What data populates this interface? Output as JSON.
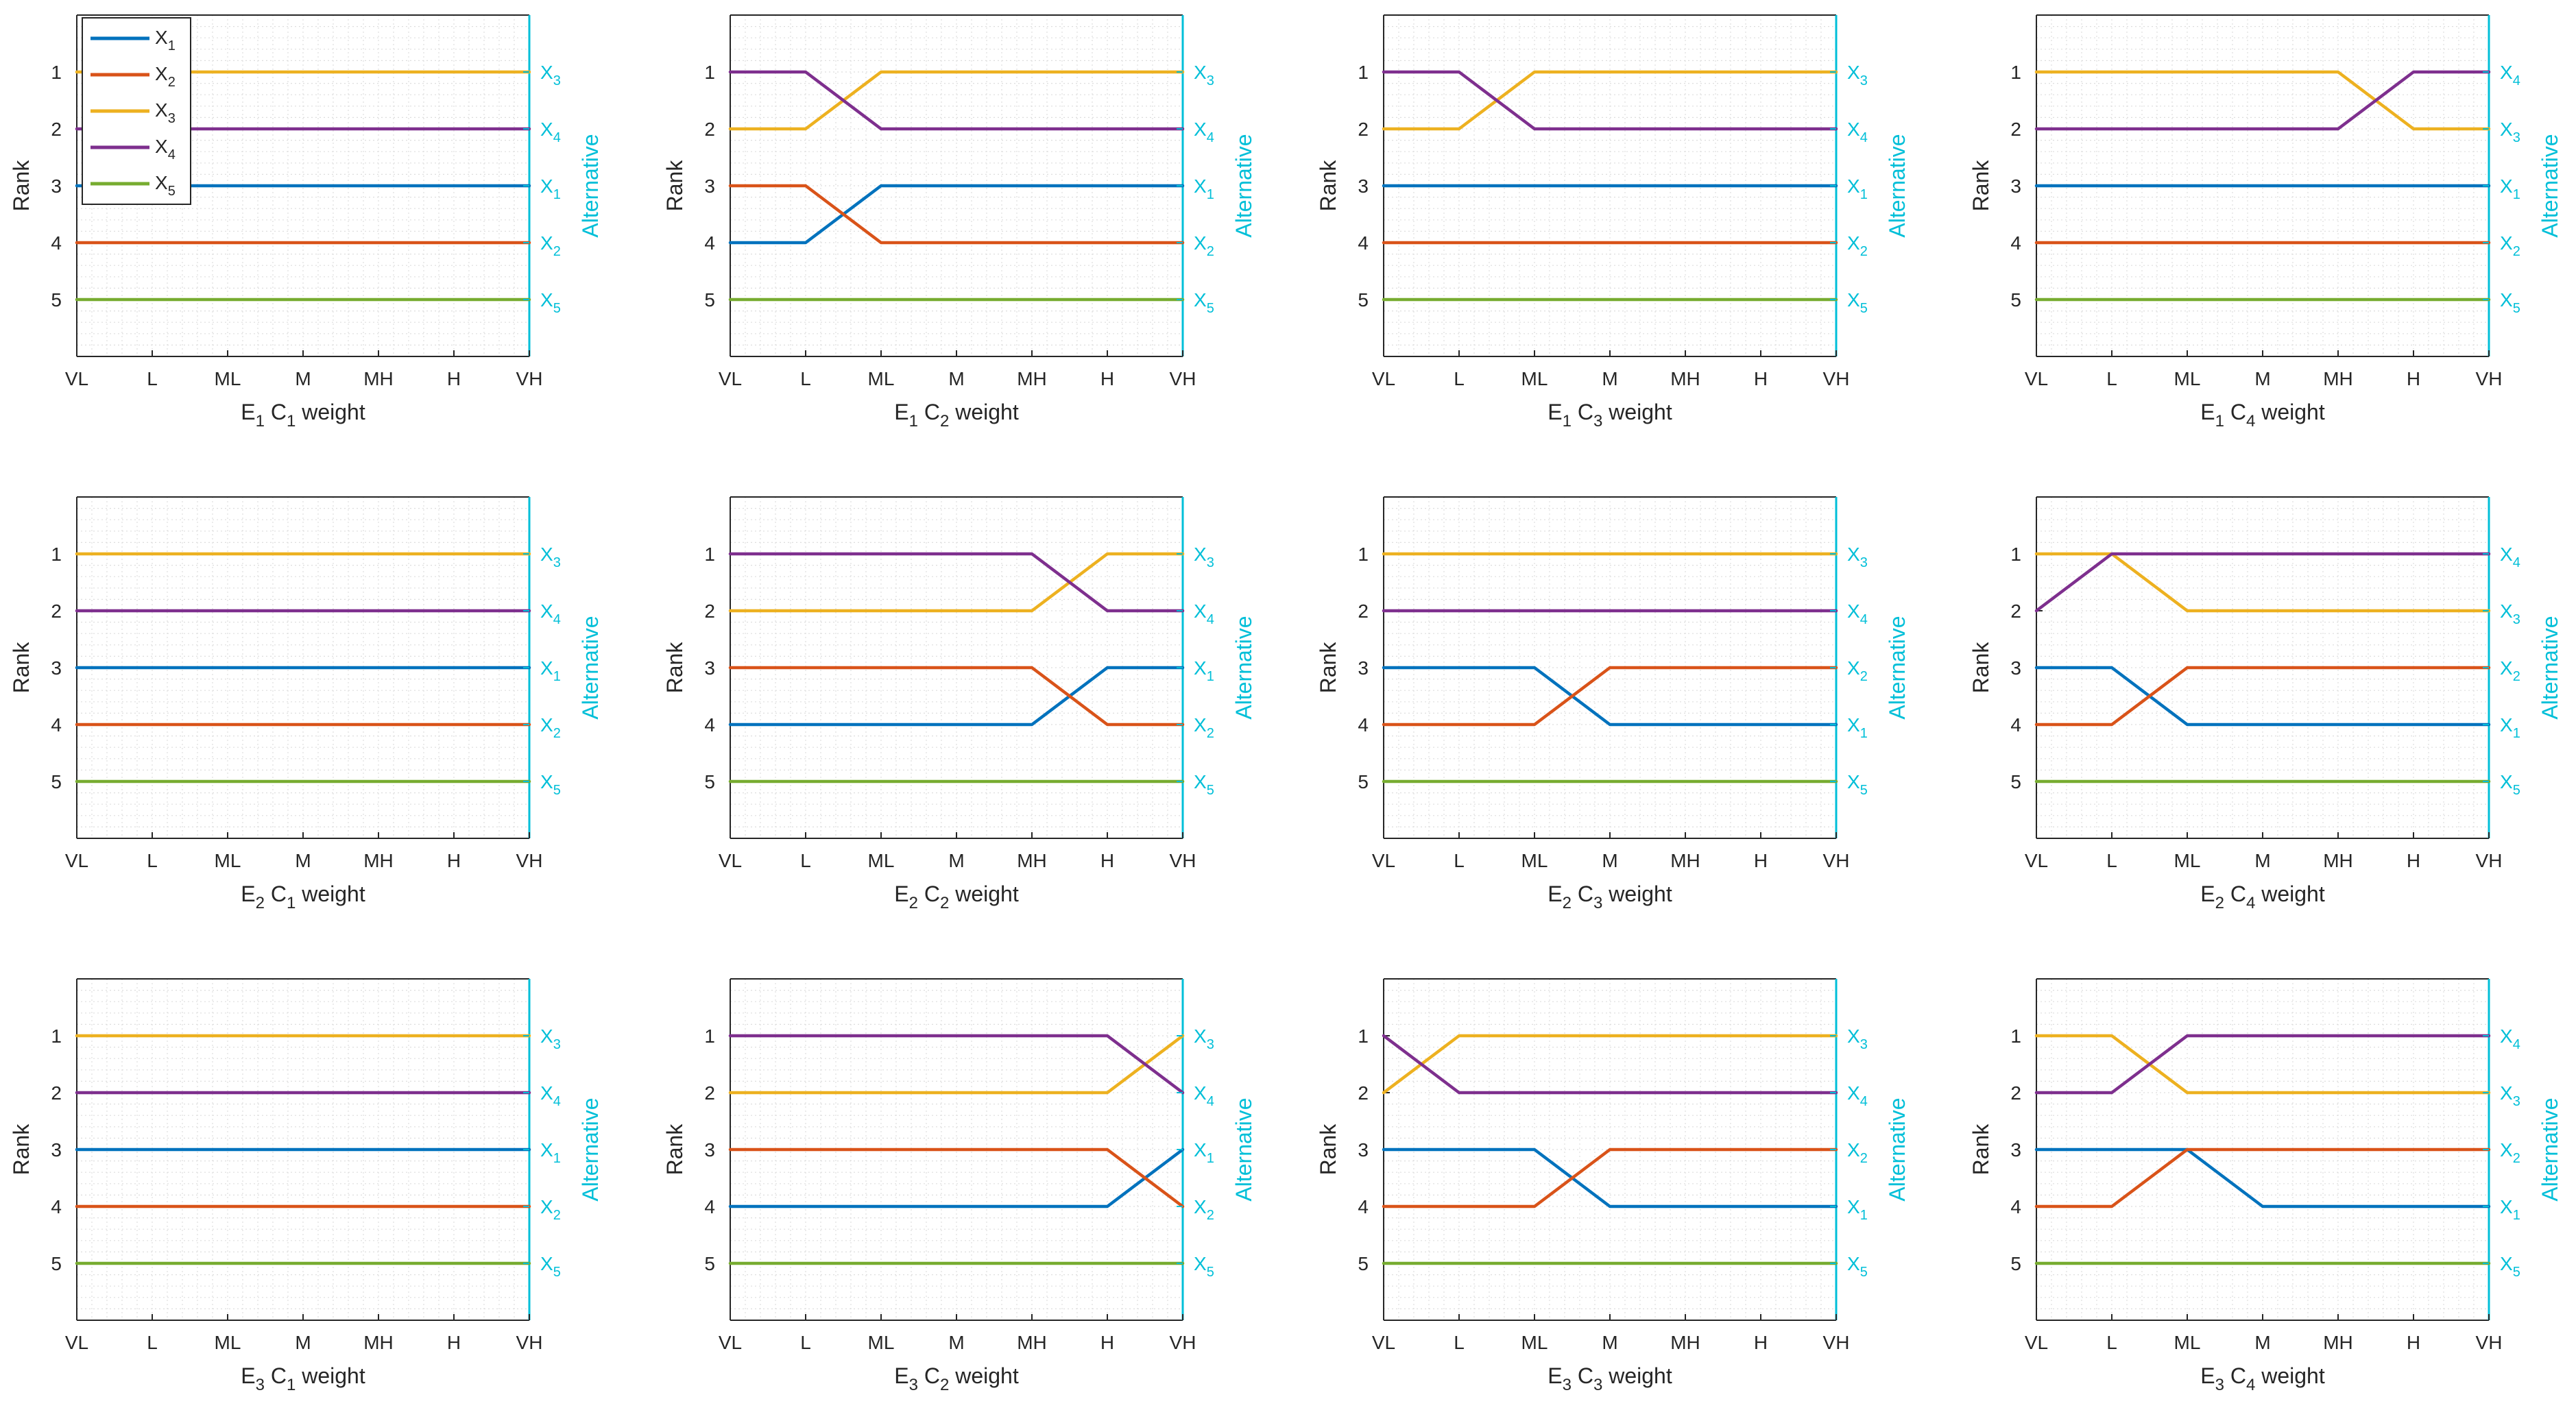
{
  "chart_data": {
    "type": "line",
    "layout": "3x4 grid of subplots",
    "x_categories": [
      "VL",
      "L",
      "ML",
      "M",
      "MH",
      "H",
      "VH"
    ],
    "y_ticks": [
      1,
      2,
      3,
      4,
      5
    ],
    "ylim": [
      6,
      0
    ],
    "ylabel": "Rank",
    "right_label": "Alternative",
    "series_names": [
      "X1",
      "X2",
      "X3",
      "X4",
      "X5"
    ],
    "series_subscripts": [
      "1",
      "2",
      "3",
      "4",
      "5"
    ],
    "series_base": "X",
    "colors": [
      "#0072BD",
      "#D95319",
      "#EDB120",
      "#7E2F8E",
      "#77AC30"
    ],
    "right_axis_color": "#00BFD8",
    "legend": {
      "location": "top-left of first subplot",
      "entries": [
        "X1",
        "X2",
        "X3",
        "X4",
        "X5"
      ]
    },
    "subplots": [
      {
        "title_expert": "E",
        "expert_sub": "1",
        "title_crit": "C",
        "crit_sub": "1",
        "xlabel_suffix": " weight",
        "show_legend": true,
        "ranks": {
          "X1": [
            3,
            3,
            3,
            3,
            3,
            3,
            3
          ],
          "X2": [
            4,
            4,
            4,
            4,
            4,
            4,
            4
          ],
          "X3": [
            1,
            1,
            1,
            1,
            1,
            1,
            1
          ],
          "X4": [
            2,
            2,
            2,
            2,
            2,
            2,
            2
          ],
          "X5": [
            5,
            5,
            5,
            5,
            5,
            5,
            5
          ]
        }
      },
      {
        "title_expert": "E",
        "expert_sub": "1",
        "title_crit": "C",
        "crit_sub": "2",
        "xlabel_suffix": " weight",
        "ranks": {
          "X1": [
            4,
            4,
            3,
            3,
            3,
            3,
            3
          ],
          "X2": [
            3,
            3,
            4,
            4,
            4,
            4,
            4
          ],
          "X3": [
            2,
            2,
            1,
            1,
            1,
            1,
            1
          ],
          "X4": [
            1,
            1,
            2,
            2,
            2,
            2,
            2
          ],
          "X5": [
            5,
            5,
            5,
            5,
            5,
            5,
            5
          ]
        }
      },
      {
        "title_expert": "E",
        "expert_sub": "1",
        "title_crit": "C",
        "crit_sub": "3",
        "xlabel_suffix": " weight",
        "ranks": {
          "X1": [
            3,
            3,
            3,
            3,
            3,
            3,
            3
          ],
          "X2": [
            4,
            4,
            4,
            4,
            4,
            4,
            4
          ],
          "X3": [
            2,
            2,
            1,
            1,
            1,
            1,
            1
          ],
          "X4": [
            1,
            1,
            2,
            2,
            2,
            2,
            2
          ],
          "X5": [
            5,
            5,
            5,
            5,
            5,
            5,
            5
          ]
        }
      },
      {
        "title_expert": "E",
        "expert_sub": "1",
        "title_crit": "C",
        "crit_sub": "4",
        "xlabel_suffix": " weight",
        "ranks": {
          "X1": [
            3,
            3,
            3,
            3,
            3,
            3,
            3
          ],
          "X2": [
            4,
            4,
            4,
            4,
            4,
            4,
            4
          ],
          "X3": [
            1,
            1,
            1,
            1,
            1,
            2,
            2
          ],
          "X4": [
            2,
            2,
            2,
            2,
            2,
            1,
            1
          ],
          "X5": [
            5,
            5,
            5,
            5,
            5,
            5,
            5
          ]
        }
      },
      {
        "title_expert": "E",
        "expert_sub": "2",
        "title_crit": "C",
        "crit_sub": "1",
        "xlabel_suffix": " weight",
        "ranks": {
          "X1": [
            3,
            3,
            3,
            3,
            3,
            3,
            3
          ],
          "X2": [
            4,
            4,
            4,
            4,
            4,
            4,
            4
          ],
          "X3": [
            1,
            1,
            1,
            1,
            1,
            1,
            1
          ],
          "X4": [
            2,
            2,
            2,
            2,
            2,
            2,
            2
          ],
          "X5": [
            5,
            5,
            5,
            5,
            5,
            5,
            5
          ]
        }
      },
      {
        "title_expert": "E",
        "expert_sub": "2",
        "title_crit": "C",
        "crit_sub": "2",
        "xlabel_suffix": " weight",
        "ranks": {
          "X1": [
            4,
            4,
            4,
            4,
            4,
            3,
            3
          ],
          "X2": [
            3,
            3,
            3,
            3,
            3,
            4,
            4
          ],
          "X3": [
            2,
            2,
            2,
            2,
            2,
            1,
            1
          ],
          "X4": [
            1,
            1,
            1,
            1,
            1,
            2,
            2
          ],
          "X5": [
            5,
            5,
            5,
            5,
            5,
            5,
            5
          ]
        }
      },
      {
        "title_expert": "E",
        "expert_sub": "2",
        "title_crit": "C",
        "crit_sub": "3",
        "xlabel_suffix": " weight",
        "ranks": {
          "X1": [
            3,
            3,
            3,
            4,
            4,
            4,
            4
          ],
          "X2": [
            4,
            4,
            4,
            3,
            3,
            3,
            3
          ],
          "X3": [
            1,
            1,
            1,
            1,
            1,
            1,
            1
          ],
          "X4": [
            2,
            2,
            2,
            2,
            2,
            2,
            2
          ],
          "X5": [
            5,
            5,
            5,
            5,
            5,
            5,
            5
          ]
        }
      },
      {
        "title_expert": "E",
        "expert_sub": "2",
        "title_crit": "C",
        "crit_sub": "4",
        "xlabel_suffix": " weight",
        "ranks": {
          "X1": [
            3,
            3,
            4,
            4,
            4,
            4,
            4
          ],
          "X2": [
            4,
            4,
            3,
            3,
            3,
            3,
            3
          ],
          "X3": [
            1,
            1,
            2,
            2,
            2,
            2,
            2
          ],
          "X4": [
            2,
            1,
            1,
            1,
            1,
            1,
            1
          ],
          "X5": [
            5,
            5,
            5,
            5,
            5,
            5,
            5
          ]
        }
      },
      {
        "title_expert": "E",
        "expert_sub": "3",
        "title_crit": "C",
        "crit_sub": "1",
        "xlabel_suffix": " weight",
        "ranks": {
          "X1": [
            3,
            3,
            3,
            3,
            3,
            3,
            3
          ],
          "X2": [
            4,
            4,
            4,
            4,
            4,
            4,
            4
          ],
          "X3": [
            1,
            1,
            1,
            1,
            1,
            1,
            1
          ],
          "X4": [
            2,
            2,
            2,
            2,
            2,
            2,
            2
          ],
          "X5": [
            5,
            5,
            5,
            5,
            5,
            5,
            5
          ]
        }
      },
      {
        "title_expert": "E",
        "expert_sub": "3",
        "title_crit": "C",
        "crit_sub": "2",
        "xlabel_suffix": " weight",
        "ranks": {
          "X1": [
            4,
            4,
            4,
            4,
            4,
            4,
            3
          ],
          "X2": [
            3,
            3,
            3,
            3,
            3,
            3,
            4
          ],
          "X3": [
            2,
            2,
            2,
            2,
            2,
            2,
            1
          ],
          "X4": [
            1,
            1,
            1,
            1,
            1,
            1,
            2
          ],
          "X5": [
            5,
            5,
            5,
            5,
            5,
            5,
            5
          ]
        }
      },
      {
        "title_expert": "E",
        "expert_sub": "3",
        "title_crit": "C",
        "crit_sub": "3",
        "xlabel_suffix": " weight",
        "ranks": {
          "X1": [
            3,
            3,
            3,
            4,
            4,
            4,
            4
          ],
          "X2": [
            4,
            4,
            4,
            3,
            3,
            3,
            3
          ],
          "X3": [
            2,
            1,
            1,
            1,
            1,
            1,
            1
          ],
          "X4": [
            1,
            2,
            2,
            2,
            2,
            2,
            2
          ],
          "X5": [
            5,
            5,
            5,
            5,
            5,
            5,
            5
          ]
        }
      },
      {
        "title_expert": "E",
        "expert_sub": "3",
        "title_crit": "C",
        "crit_sub": "4",
        "xlabel_suffix": " weight",
        "ranks": {
          "X1": [
            3,
            3,
            3,
            4,
            4,
            4,
            4
          ],
          "X2": [
            4,
            4,
            3,
            3,
            3,
            3,
            3
          ],
          "X3": [
            1,
            1,
            2,
            2,
            2,
            2,
            2
          ],
          "X4": [
            2,
            2,
            1,
            1,
            1,
            1,
            1
          ],
          "X5": [
            5,
            5,
            5,
            5,
            5,
            5,
            5
          ]
        }
      }
    ]
  }
}
